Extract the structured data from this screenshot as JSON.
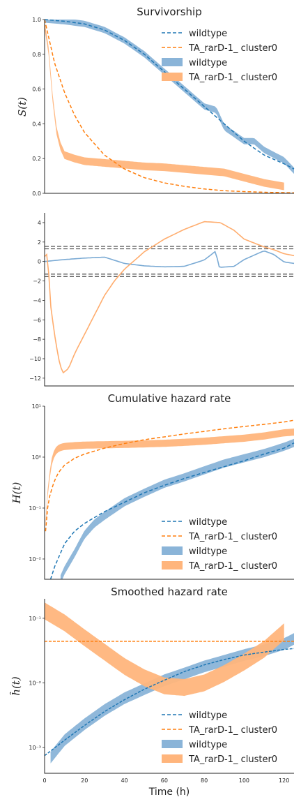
{
  "figure": {
    "xlabel": "Time (h)",
    "colors": {
      "wildtype": "#1f77b4",
      "wildtype_band": "#8ab4d8",
      "cluster": "#ff7f0e",
      "cluster_band": "#ffb57c",
      "threshold": "#444444"
    }
  },
  "chart_data": [
    {
      "id": "survivorship",
      "type": "line",
      "title": "Survivorship",
      "ylabel": "S(t)",
      "xlim": [
        0,
        125
      ],
      "ylim": [
        0,
        1
      ],
      "yscale": "linear",
      "yticks": [
        0.0,
        0.2,
        0.4,
        0.6,
        0.8,
        1.0
      ],
      "ytick_labels": [
        "0.0",
        "0.2",
        "0.4",
        "0.6",
        "0.8",
        "1.0"
      ],
      "legend": [
        "wildtype",
        "TA_rarD-1_ cluster0",
        "wildtype",
        "TA_rarD-1_ cluster0"
      ],
      "legend_loc": "upper right",
      "series": [
        {
          "name": "wildtype",
          "style": "dashed-fit",
          "x": [
            0,
            10,
            20,
            30,
            40,
            50,
            60,
            70,
            80,
            90,
            100,
            110,
            120,
            125
          ],
          "y": [
            1.0,
            0.99,
            0.975,
            0.94,
            0.88,
            0.8,
            0.7,
            0.6,
            0.5,
            0.4,
            0.3,
            0.22,
            0.17,
            0.14
          ]
        },
        {
          "name": "TA_rarD-1_ cluster0",
          "style": "dashed-fit",
          "x": [
            0,
            5,
            10,
            15,
            20,
            30,
            40,
            50,
            60,
            70,
            80,
            90,
            100,
            110,
            125
          ],
          "y": [
            1.0,
            0.75,
            0.58,
            0.45,
            0.35,
            0.22,
            0.14,
            0.09,
            0.06,
            0.04,
            0.025,
            0.015,
            0.01,
            0.006,
            0.003
          ]
        },
        {
          "name": "wildtype",
          "style": "band",
          "x": [
            0,
            10,
            20,
            30,
            40,
            50,
            60,
            70,
            80,
            86,
            90,
            95,
            100,
            105,
            110,
            120,
            125
          ],
          "y": [
            1.0,
            0.99,
            0.975,
            0.94,
            0.88,
            0.8,
            0.7,
            0.6,
            0.5,
            0.48,
            0.38,
            0.34,
            0.3,
            0.3,
            0.25,
            0.19,
            0.13
          ],
          "band": 0.018
        },
        {
          "name": "TA_rarD-1_ cluster0",
          "style": "band",
          "x": [
            0,
            2,
            4,
            6,
            8,
            10,
            15,
            20,
            30,
            40,
            50,
            60,
            70,
            80,
            90,
            100,
            110,
            120
          ],
          "y": [
            0.97,
            0.82,
            0.55,
            0.36,
            0.27,
            0.22,
            0.2,
            0.185,
            0.175,
            0.165,
            0.155,
            0.15,
            0.14,
            0.13,
            0.12,
            0.09,
            0.06,
            0.04
          ],
          "band": 0.022
        }
      ]
    },
    {
      "id": "test-statistic",
      "type": "line",
      "title": "",
      "ylabel": "",
      "xlim": [
        0,
        125
      ],
      "ylim": [
        -12.8,
        5
      ],
      "yscale": "linear",
      "yticks": [
        -12,
        -10,
        -8,
        -6,
        -4,
        -2,
        0,
        2,
        4
      ],
      "ytick_labels": [
        "−12",
        "−10",
        "−8",
        "−6",
        "−4",
        "−2",
        "0",
        "2",
        "4"
      ],
      "hlines": [
        1.55,
        1.3,
        -1.3,
        -1.55
      ],
      "series": [
        {
          "name": "wildtype",
          "x": [
            0,
            5,
            10,
            20,
            30,
            40,
            50,
            60,
            70,
            80,
            86,
            87,
            88,
            95,
            100,
            110,
            115,
            120,
            125
          ],
          "y": [
            0.0,
            0.1,
            0.2,
            0.35,
            0.45,
            -0.2,
            -0.45,
            -0.55,
            -0.5,
            0.15,
            1.1,
            -0.5,
            -0.6,
            -0.5,
            0.2,
            1.1,
            0.7,
            -0.05,
            -0.2
          ]
        },
        {
          "name": "TA_rarD-1_ cluster0",
          "x": [
            0,
            1,
            2,
            3,
            5,
            7,
            9,
            12,
            15,
            20,
            25,
            30,
            35,
            40,
            50,
            60,
            70,
            80,
            88,
            95,
            100,
            105,
            110,
            115,
            120,
            125
          ],
          "y": [
            0.5,
            0.8,
            -1.0,
            -4.5,
            -7.5,
            -10.0,
            -11.5,
            -11.0,
            -9.5,
            -7.5,
            -5.5,
            -3.5,
            -2.0,
            -0.8,
            1.0,
            2.3,
            3.3,
            4.1,
            4.0,
            3.2,
            2.3,
            1.9,
            1.5,
            1.2,
            0.8,
            0.6
          ]
        }
      ]
    },
    {
      "id": "cumulative-hazard",
      "type": "line",
      "title": "Cumulative hazard rate",
      "ylabel": "H(t)",
      "xlim": [
        0,
        125
      ],
      "ylim": [
        0.004,
        10
      ],
      "yscale": "log",
      "yticks": [
        0.01,
        0.1,
        1,
        10
      ],
      "ytick_labels": [
        "10⁻²",
        "10⁻¹",
        "10⁰",
        "10¹"
      ],
      "legend": [
        "wildtype",
        "TA_rarD-1_ cluster0",
        "wildtype",
        "TA_rarD-1_ cluster0"
      ],
      "legend_loc": "lower right",
      "series": [
        {
          "name": "wildtype",
          "style": "dashed-fit",
          "x": [
            3,
            5,
            10,
            15,
            20,
            30,
            40,
            50,
            60,
            70,
            80,
            90,
            100,
            110,
            120,
            125
          ],
          "y": [
            0.004,
            0.007,
            0.02,
            0.035,
            0.05,
            0.085,
            0.13,
            0.2,
            0.28,
            0.38,
            0.5,
            0.65,
            0.85,
            1.15,
            1.5,
            1.9
          ]
        },
        {
          "name": "TA_rarD-1_ cluster0",
          "style": "dashed-fit",
          "x": [
            0.5,
            1,
            2,
            3,
            5,
            7,
            10,
            15,
            20,
            30,
            40,
            50,
            60,
            70,
            80,
            90,
            100,
            110,
            120,
            125
          ],
          "y": [
            0.035,
            0.07,
            0.14,
            0.2,
            0.35,
            0.5,
            0.7,
            0.95,
            1.15,
            1.5,
            1.85,
            2.2,
            2.5,
            2.85,
            3.2,
            3.6,
            4.0,
            4.4,
            4.9,
            5.3
          ]
        },
        {
          "name": "wildtype",
          "style": "band",
          "x": [
            8,
            10,
            15,
            20,
            25,
            30,
            40,
            50,
            60,
            70,
            80,
            90,
            100,
            110,
            120,
            125
          ],
          "y": [
            0.004,
            0.006,
            0.013,
            0.03,
            0.05,
            0.07,
            0.13,
            0.2,
            0.3,
            0.4,
            0.55,
            0.75,
            0.95,
            1.2,
            1.6,
            1.9
          ],
          "band": 0.08
        },
        {
          "name": "TA_rarD-1_ cluster0",
          "style": "band",
          "x": [
            0.5,
            1,
            2,
            3,
            4,
            6,
            8,
            10,
            15,
            20,
            30,
            40,
            50,
            60,
            70,
            80,
            90,
            100,
            110,
            120,
            125
          ],
          "y": [
            0.05,
            0.12,
            0.3,
            0.6,
            1.0,
            1.4,
            1.55,
            1.62,
            1.68,
            1.72,
            1.75,
            1.78,
            1.82,
            1.87,
            1.95,
            2.05,
            2.2,
            2.35,
            2.6,
            3.0,
            3.1
          ],
          "band": 0.07
        }
      ]
    },
    {
      "id": "smoothed-hazard",
      "type": "line",
      "title": "Smoothed hazard rate",
      "ylabel": "ĥ(t)",
      "xlabel": "Time (h)",
      "xlim": [
        0,
        125
      ],
      "ylim": [
        0.0004,
        0.2
      ],
      "yscale": "log",
      "xticks": [
        0,
        20,
        40,
        60,
        80,
        100,
        120
      ],
      "xtick_labels": [
        "0",
        "20",
        "40",
        "60",
        "80",
        "100",
        "120"
      ],
      "yticks": [
        0.001,
        0.01,
        0.1
      ],
      "ytick_labels": [
        "10⁻³",
        "10⁻²",
        "10⁻¹"
      ],
      "legend": [
        "wildtype",
        "TA_rarD-1_ cluster0",
        "wildtype",
        "TA_rarD-1_ cluster0"
      ],
      "legend_loc": "lower right",
      "series": [
        {
          "name": "wildtype",
          "style": "dashed-fit",
          "x": [
            0,
            10,
            20,
            30,
            40,
            50,
            60,
            70,
            80,
            90,
            100,
            110,
            120,
            125
          ],
          "y": [
            0.00075,
            0.0013,
            0.0022,
            0.0036,
            0.0055,
            0.008,
            0.011,
            0.015,
            0.019,
            0.023,
            0.027,
            0.03,
            0.033,
            0.034
          ]
        },
        {
          "name": "TA_rarD-1_ cluster0",
          "style": "dashed-fit",
          "x": [
            0,
            125
          ],
          "y": [
            0.044,
            0.044
          ]
        },
        {
          "name": "wildtype",
          "style": "band",
          "x": [
            3,
            10,
            20,
            30,
            40,
            50,
            60,
            70,
            80,
            90,
            100,
            110,
            120,
            125
          ],
          "y": [
            0.0007,
            0.0013,
            0.0023,
            0.0038,
            0.0058,
            0.008,
            0.011,
            0.014,
            0.018,
            0.022,
            0.027,
            0.032,
            0.04,
            0.048
          ],
          "band": 0.09
        },
        {
          "name": "TA_rarD-1_ cluster0",
          "style": "band",
          "x": [
            0,
            10,
            20,
            30,
            40,
            50,
            60,
            70,
            80,
            90,
            100,
            110,
            120
          ],
          "y": [
            0.13,
            0.085,
            0.05,
            0.03,
            0.018,
            0.012,
            0.009,
            0.0085,
            0.01,
            0.014,
            0.021,
            0.033,
            0.062
          ],
          "band": 0.13
        }
      ]
    }
  ]
}
